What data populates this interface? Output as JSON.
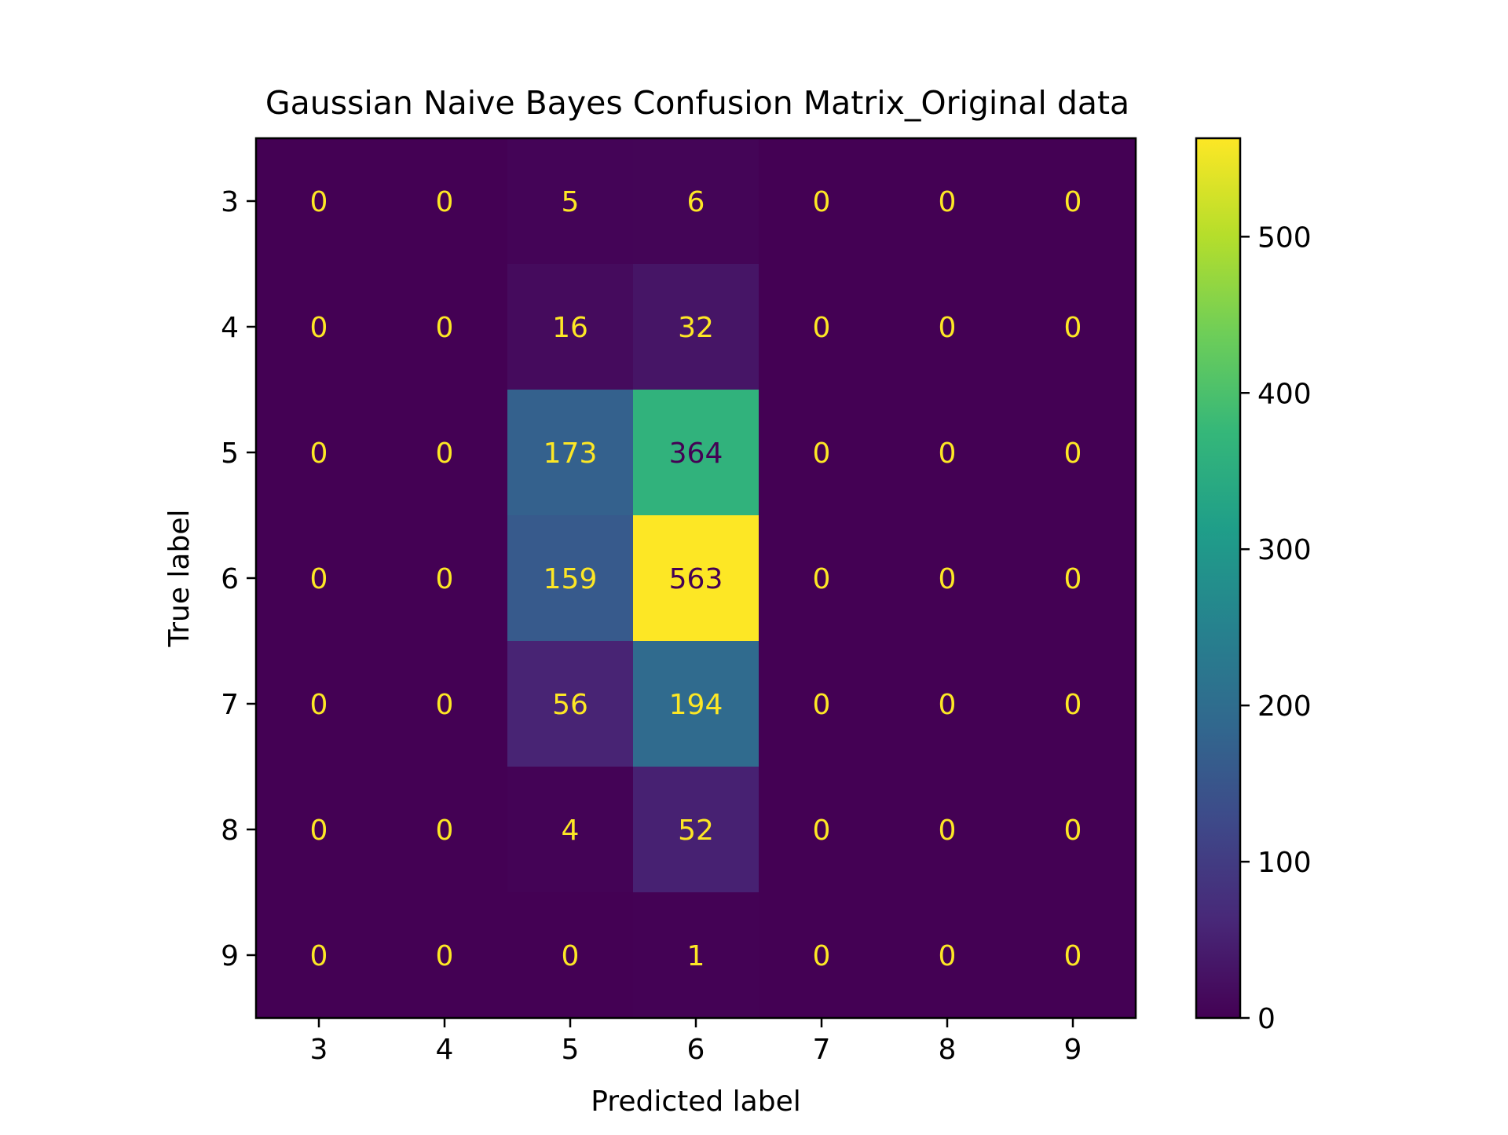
{
  "chart_data": {
    "type": "heatmap",
    "title": "Gaussian Naive Bayes Confusion Matrix_Original data",
    "xlabel": "Predicted label",
    "ylabel": "True label",
    "x_categories": [
      "3",
      "4",
      "5",
      "6",
      "7",
      "8",
      "9"
    ],
    "y_categories": [
      "3",
      "4",
      "5",
      "6",
      "7",
      "8",
      "9"
    ],
    "values": [
      [
        0,
        0,
        5,
        6,
        0,
        0,
        0
      ],
      [
        0,
        0,
        16,
        32,
        0,
        0,
        0
      ],
      [
        0,
        0,
        173,
        364,
        0,
        0,
        0
      ],
      [
        0,
        0,
        159,
        563,
        0,
        0,
        0
      ],
      [
        0,
        0,
        56,
        194,
        0,
        0,
        0
      ],
      [
        0,
        0,
        4,
        52,
        0,
        0,
        0
      ],
      [
        0,
        0,
        0,
        1,
        0,
        0,
        0
      ]
    ],
    "colormap": "viridis",
    "colorbar": {
      "range": [
        0,
        563
      ],
      "ticks": [
        0,
        100,
        200,
        300,
        400,
        500
      ]
    },
    "text_colors": {
      "on_dark": "#fde725",
      "on_light": "#440154"
    }
  }
}
